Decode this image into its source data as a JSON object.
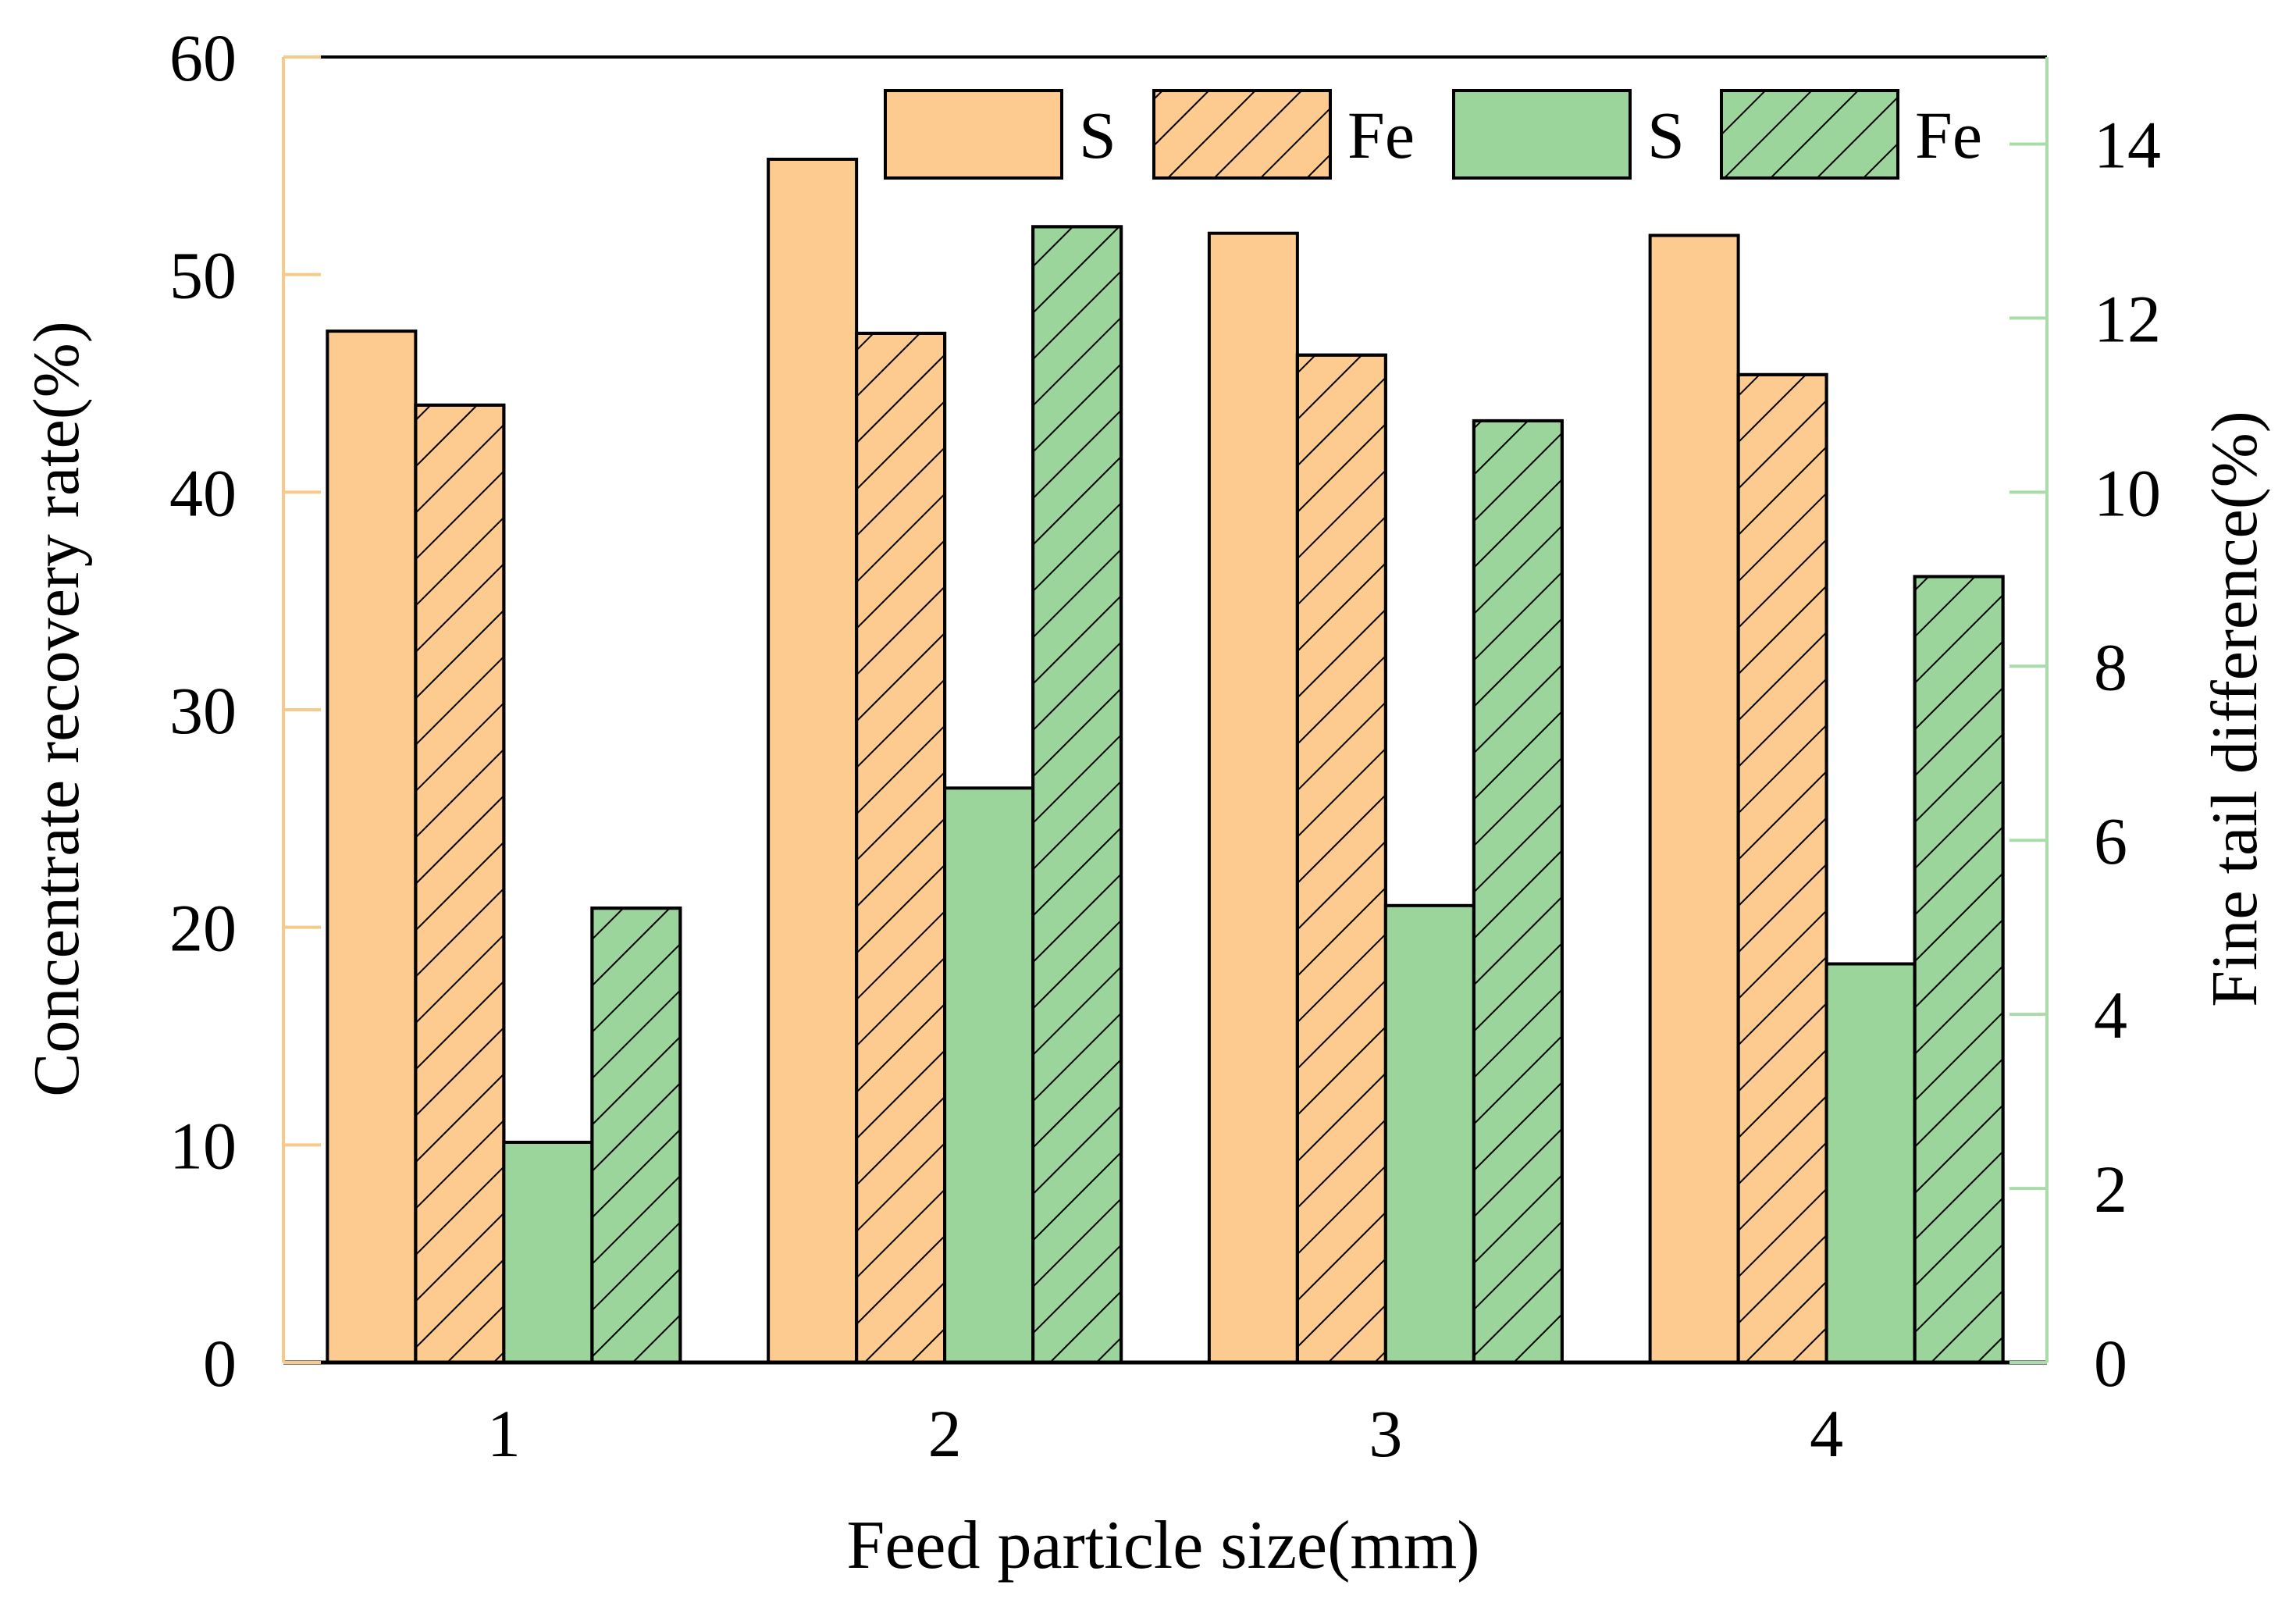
{
  "chart_data": {
    "type": "bar",
    "xlabel": "Feed particle size(mm)",
    "ylabel_left": "Concentrate recovery rate(%)",
    "ylabel_right": "Fine tail difference(%)",
    "categories": [
      "1",
      "2",
      "3",
      "4"
    ],
    "ylim_left": [
      0,
      60
    ],
    "ylim_right": [
      0,
      15
    ],
    "yticks_left": [
      "0",
      "10",
      "20",
      "30",
      "40",
      "50",
      "60"
    ],
    "yticks_right": [
      "0",
      "2",
      "4",
      "6",
      "8",
      "10",
      "12",
      "14"
    ],
    "series": [
      {
        "name": "S",
        "axis": "left",
        "color": "#fdca90",
        "hatch": false,
        "values": [
          47.4,
          55.3,
          51.9,
          51.8
        ]
      },
      {
        "name": "Fe",
        "axis": "left",
        "color": "#fdca90",
        "hatch": true,
        "values": [
          44.0,
          47.3,
          46.3,
          45.4
        ]
      },
      {
        "name": "S",
        "axis": "right",
        "color": "#9cd59c",
        "hatch": false,
        "values": [
          2.53,
          6.6,
          5.25,
          4.58
        ]
      },
      {
        "name": "Fe",
        "axis": "right",
        "color": "#9cd59c",
        "hatch": true,
        "values": [
          5.22,
          13.05,
          10.82,
          9.03
        ]
      }
    ],
    "axis_colors": {
      "left": "#f7c98a",
      "right": "#a8dca8"
    },
    "legend": [
      "S",
      "Fe",
      "S",
      "Fe"
    ],
    "legend_position": "top-right",
    "grid": false
  }
}
